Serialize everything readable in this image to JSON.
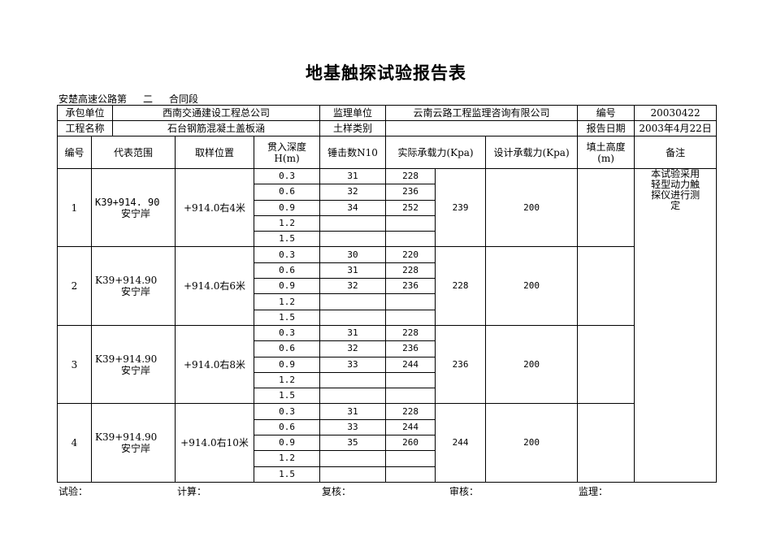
{
  "title": "地基触探试验报告表",
  "subline": {
    "prefix": "安楚高速公路第",
    "section": "二",
    "suffix": "合同段"
  },
  "info": {
    "contractor_label": "承包单位",
    "contractor": "西南交通建设工程总公司",
    "supervisor_label": "监理单位",
    "supervisor": "云南云路工程监理咨询有限公司",
    "number_label": "编号",
    "number": "20030422",
    "project_label": "工程名称",
    "project": "石台钢筋混凝土盖板涵",
    "soil_label": "土样类别",
    "soil": "",
    "date_label": "报告日期",
    "date": "2003年4月22日"
  },
  "headers": {
    "no": "编号",
    "range": "代表范围",
    "position": "取样位置",
    "depth": "贯入深度H(m)",
    "blows": "锤击数N10",
    "actual": "实际承载力(Kpa)",
    "design": "设计承载力(Kpa)",
    "fill": "填土高度(m)",
    "remark": "备注"
  },
  "remark": "本试验采用轻型动力触探仪进行测定",
  "groups": [
    {
      "no": "1",
      "range1": "K39+914. 90",
      "range2": "安宁岸",
      "position": "+914.0右4米",
      "actual_avg": "239",
      "design": "200",
      "fill": "",
      "rows": [
        {
          "depth": "0.3",
          "blows": "31",
          "actual": "228"
        },
        {
          "depth": "0.6",
          "blows": "32",
          "actual": "236"
        },
        {
          "depth": "0.9",
          "blows": "34",
          "actual": "252"
        },
        {
          "depth": "1.2",
          "blows": "",
          "actual": ""
        },
        {
          "depth": "1.5",
          "blows": "",
          "actual": ""
        }
      ]
    },
    {
      "no": "2",
      "range1": "K39+914.90",
      "range2": "安宁岸",
      "position": "+914.0右6米",
      "actual_avg": "228",
      "design": "200",
      "fill": "",
      "rows": [
        {
          "depth": "0.3",
          "blows": "30",
          "actual": "220"
        },
        {
          "depth": "0.6",
          "blows": "31",
          "actual": "228"
        },
        {
          "depth": "0.9",
          "blows": "32",
          "actual": "236"
        },
        {
          "depth": "1.2",
          "blows": "",
          "actual": ""
        },
        {
          "depth": "1.5",
          "blows": "",
          "actual": ""
        }
      ]
    },
    {
      "no": "3",
      "range1": "K39+914.90",
      "range2": "安宁岸",
      "position": "+914.0右8米",
      "actual_avg": "236",
      "design": "200",
      "fill": "",
      "rows": [
        {
          "depth": "0.3",
          "blows": "31",
          "actual": "228"
        },
        {
          "depth": "0.6",
          "blows": "32",
          "actual": "236"
        },
        {
          "depth": "0.9",
          "blows": "33",
          "actual": "244"
        },
        {
          "depth": "1.2",
          "blows": "",
          "actual": ""
        },
        {
          "depth": "1.5",
          "blows": "",
          "actual": ""
        }
      ]
    },
    {
      "no": "4",
      "range1": "K39+914.90",
      "range2": "安宁岸",
      "position": "+914.0右10米",
      "actual_avg": "244",
      "design": "200",
      "fill": "",
      "rows": [
        {
          "depth": "0.3",
          "blows": "31",
          "actual": "228"
        },
        {
          "depth": "0.6",
          "blows": "33",
          "actual": "244"
        },
        {
          "depth": "0.9",
          "blows": "35",
          "actual": "260"
        },
        {
          "depth": "1.2",
          "blows": "",
          "actual": ""
        },
        {
          "depth": "1.5",
          "blows": "",
          "actual": ""
        }
      ]
    }
  ],
  "footer": {
    "test": "试验：",
    "calc": "计算：",
    "review": "复核：",
    "audit": "审核：",
    "supervise": "监理："
  }
}
